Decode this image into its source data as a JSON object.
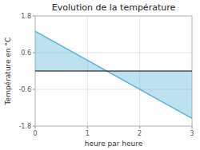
{
  "chart_data": {
    "type": "area",
    "title": "Evolution de la température",
    "x_label": "heure par heure",
    "y_label": "Température en °C",
    "x": [
      0,
      3
    ],
    "values": [
      1.3,
      -1.55
    ],
    "color": "#5ab4d4",
    "xlim": [
      0,
      3
    ],
    "ylim": [
      -1.8,
      1.8
    ],
    "xticks": [
      0,
      1,
      2,
      3
    ],
    "yticks": [
      -1.8,
      -0.6,
      0.6,
      1.8
    ],
    "grid": true
  }
}
